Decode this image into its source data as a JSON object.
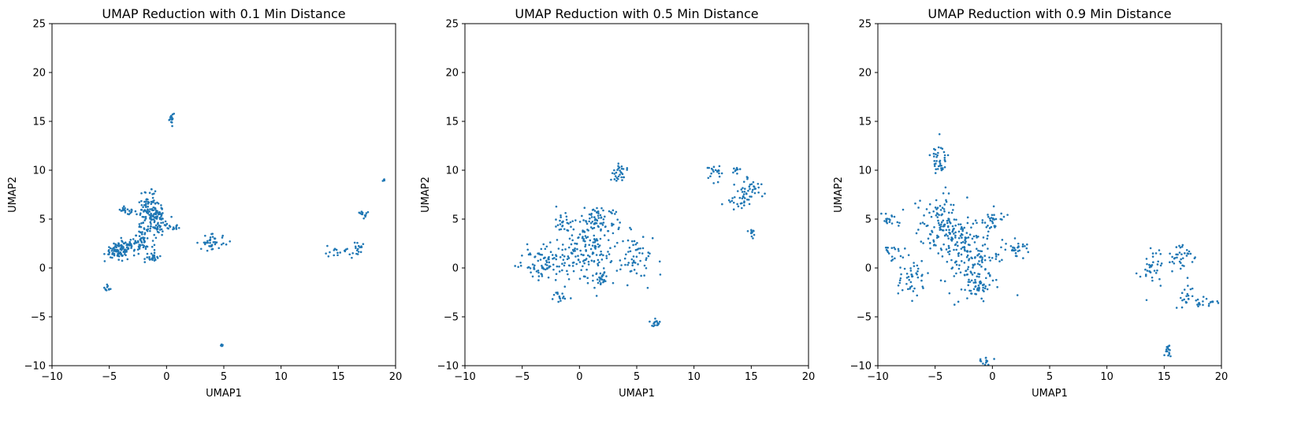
{
  "chart_data": [
    {
      "type": "scatter",
      "title": "UMAP Reduction with 0.1 Min Distance",
      "xlabel": "UMAP1",
      "ylabel": "UMAP2",
      "xlim": [
        -10,
        20
      ],
      "ylim": [
        -10,
        25
      ],
      "xticks": [
        -10,
        -5,
        0,
        5,
        10,
        15,
        20
      ],
      "yticks": [
        -10,
        -5,
        0,
        5,
        10,
        15,
        20,
        25
      ],
      "color": "#1f77b4",
      "clusters": [
        {
          "cx": -4.2,
          "cy": 1.8,
          "sx": 0.6,
          "sy": 0.4,
          "n": 90
        },
        {
          "cx": -3.0,
          "cy": 2.3,
          "sx": 0.6,
          "sy": 0.5,
          "n": 40
        },
        {
          "cx": -3.5,
          "cy": 5.9,
          "sx": 0.4,
          "sy": 0.15,
          "n": 20
        },
        {
          "cx": -1.5,
          "cy": 5.5,
          "sx": 0.5,
          "sy": 1.0,
          "n": 130
        },
        {
          "cx": -0.5,
          "cy": 5.0,
          "sx": 0.5,
          "sy": 0.8,
          "n": 40
        },
        {
          "cx": -2.0,
          "cy": 3.0,
          "sx": 0.5,
          "sy": 0.6,
          "n": 40
        },
        {
          "cx": -1.2,
          "cy": 1.0,
          "sx": 0.3,
          "sy": 0.3,
          "n": 25
        },
        {
          "cx": 0.4,
          "cy": 4.2,
          "sx": 0.4,
          "sy": 0.2,
          "n": 15
        },
        {
          "cx": -5.1,
          "cy": -2.0,
          "sx": 0.15,
          "sy": 0.25,
          "n": 10
        },
        {
          "cx": 0.45,
          "cy": 15.3,
          "sx": 0.1,
          "sy": 0.3,
          "n": 15
        },
        {
          "cx": 4.0,
          "cy": 2.6,
          "sx": 0.6,
          "sy": 0.4,
          "n": 40
        },
        {
          "cx": 4.8,
          "cy": -7.9,
          "sx": 0.08,
          "sy": 0.08,
          "n": 5
        },
        {
          "cx": 15.2,
          "cy": 1.7,
          "sx": 0.6,
          "sy": 0.3,
          "n": 20
        },
        {
          "cx": 16.7,
          "cy": 2.0,
          "sx": 0.2,
          "sy": 0.5,
          "n": 15
        },
        {
          "cx": 17.2,
          "cy": 5.5,
          "sx": 0.35,
          "sy": 0.2,
          "n": 12
        },
        {
          "cx": 19.0,
          "cy": 9.0,
          "sx": 0.07,
          "sy": 0.07,
          "n": 4
        }
      ]
    },
    {
      "type": "scatter",
      "title": "UMAP Reduction with 0.5 Min Distance",
      "xlabel": "UMAP1",
      "ylabel": "UMAP2",
      "xlim": [
        -10,
        20
      ],
      "ylim": [
        -10,
        25
      ],
      "xticks": [
        -10,
        -5,
        0,
        5,
        10,
        15,
        20
      ],
      "yticks": [
        -10,
        -5,
        0,
        5,
        10,
        15,
        20,
        25
      ],
      "color": "#1f77b4",
      "clusters": [
        {
          "cx": -3.0,
          "cy": 0.6,
          "sx": 0.9,
          "sy": 0.8,
          "n": 90
        },
        {
          "cx": -1.5,
          "cy": 4.7,
          "sx": 0.5,
          "sy": 0.5,
          "n": 25
        },
        {
          "cx": 0.5,
          "cy": 2.0,
          "sx": 1.2,
          "sy": 1.6,
          "n": 150
        },
        {
          "cx": 1.8,
          "cy": 5.0,
          "sx": 0.8,
          "sy": 1.0,
          "n": 60
        },
        {
          "cx": 1.8,
          "cy": -1.2,
          "sx": 0.4,
          "sy": 0.3,
          "n": 25
        },
        {
          "cx": -1.7,
          "cy": -3.0,
          "sx": 0.3,
          "sy": 0.3,
          "n": 15
        },
        {
          "cx": 3.5,
          "cy": 9.8,
          "sx": 0.3,
          "sy": 0.5,
          "n": 30
        },
        {
          "cx": 5.0,
          "cy": 1.0,
          "sx": 1.0,
          "sy": 1.2,
          "n": 60
        },
        {
          "cx": 6.6,
          "cy": -5.6,
          "sx": 0.25,
          "sy": 0.25,
          "n": 15
        },
        {
          "cx": 11.8,
          "cy": 9.8,
          "sx": 0.4,
          "sy": 0.5,
          "n": 20
        },
        {
          "cx": 15.0,
          "cy": 8.0,
          "sx": 0.6,
          "sy": 0.8,
          "n": 40
        },
        {
          "cx": 13.8,
          "cy": 6.8,
          "sx": 0.6,
          "sy": 0.4,
          "n": 20
        },
        {
          "cx": 15.0,
          "cy": 3.6,
          "sx": 0.15,
          "sy": 0.3,
          "n": 10
        },
        {
          "cx": 13.8,
          "cy": 10.0,
          "sx": 0.2,
          "sy": 0.15,
          "n": 8
        }
      ]
    },
    {
      "type": "scatter",
      "title": "UMAP Reduction with 0.9 Min Distance",
      "xlabel": "UMAP1",
      "ylabel": "UMAP2",
      "xlim": [
        -10,
        20
      ],
      "ylim": [
        -10,
        25
      ],
      "xticks": [
        -10,
        -5,
        0,
        5,
        10,
        15,
        20
      ],
      "yticks": [
        -10,
        -5,
        0,
        5,
        10,
        15,
        20,
        25
      ],
      "color": "#1f77b4",
      "clusters": [
        {
          "cx": -9.0,
          "cy": 4.8,
          "sx": 0.5,
          "sy": 0.5,
          "n": 20
        },
        {
          "cx": -8.5,
          "cy": 1.8,
          "sx": 0.6,
          "sy": 0.5,
          "n": 20
        },
        {
          "cx": -7.0,
          "cy": -1.0,
          "sx": 0.8,
          "sy": 0.9,
          "n": 45
        },
        {
          "cx": -4.6,
          "cy": 11.0,
          "sx": 0.4,
          "sy": 0.9,
          "n": 40
        },
        {
          "cx": -4.5,
          "cy": 4.5,
          "sx": 1.0,
          "sy": 1.4,
          "n": 110
        },
        {
          "cx": -2.0,
          "cy": 1.5,
          "sx": 1.3,
          "sy": 1.8,
          "n": 160
        },
        {
          "cx": -1.5,
          "cy": -2.0,
          "sx": 0.9,
          "sy": 0.8,
          "n": 60
        },
        {
          "cx": 0.0,
          "cy": 5.0,
          "sx": 0.5,
          "sy": 0.8,
          "n": 30
        },
        {
          "cx": 2.2,
          "cy": 2.0,
          "sx": 0.6,
          "sy": 0.5,
          "n": 30
        },
        {
          "cx": -0.6,
          "cy": -9.5,
          "sx": 0.3,
          "sy": 0.3,
          "n": 15
        },
        {
          "cx": 13.8,
          "cy": 0.0,
          "sx": 0.6,
          "sy": 1.0,
          "n": 35
        },
        {
          "cx": 16.5,
          "cy": 1.0,
          "sx": 0.5,
          "sy": 0.7,
          "n": 35
        },
        {
          "cx": 17.0,
          "cy": -2.5,
          "sx": 0.3,
          "sy": 0.8,
          "n": 15
        },
        {
          "cx": 18.8,
          "cy": -3.5,
          "sx": 0.8,
          "sy": 0.3,
          "n": 30
        },
        {
          "cx": 15.3,
          "cy": -8.4,
          "sx": 0.2,
          "sy": 0.4,
          "n": 15
        }
      ]
    }
  ]
}
